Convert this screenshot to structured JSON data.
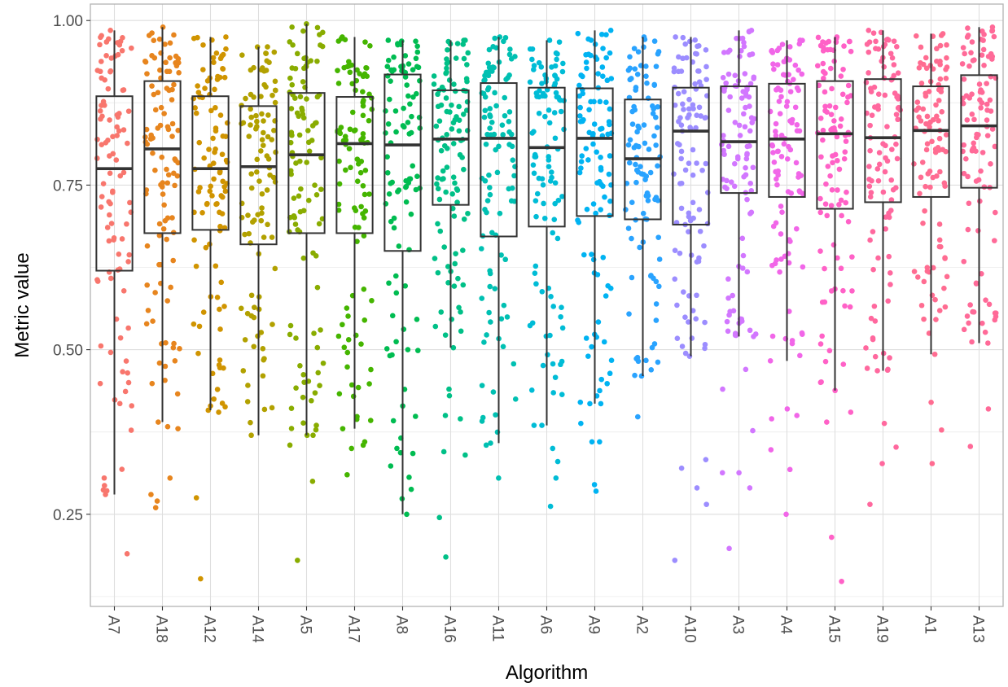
{
  "chart_data": {
    "type": "box",
    "xlabel": "Algorithm",
    "ylabel": "Metric value",
    "ylim": [
      0.11,
      1.025
    ],
    "yticks": [
      0.25,
      0.5,
      0.75,
      1.0
    ],
    "ytick_labels": [
      "0.25",
      "0.50",
      "0.75",
      "1.00"
    ],
    "grid": true,
    "legend": "none",
    "jitter_points_per_group": 100,
    "categories": [
      "A7",
      "A18",
      "A12",
      "A14",
      "A5",
      "A17",
      "A8",
      "A16",
      "A11",
      "A6",
      "A9",
      "A2",
      "A10",
      "A3",
      "A4",
      "A15",
      "A19",
      "A1",
      "A13"
    ],
    "colors": [
      "#F8766D",
      "#E7851E",
      "#D09400",
      "#B2A100",
      "#89AC00",
      "#45B500",
      "#00BC51",
      "#00C087",
      "#00C0B2",
      "#00BCD6",
      "#00B3F2",
      "#29A3FF",
      "#9C8DFF",
      "#D277FF",
      "#F166E8",
      "#FF61C7",
      "#FF689E",
      "#FF6C91",
      "#FF6A98"
    ],
    "boxes": [
      {
        "name": "A7",
        "whisker_low": 0.28,
        "q1": 0.62,
        "median": 0.775,
        "q3": 0.885,
        "whisker_high": 0.985
      },
      {
        "name": "A18",
        "whisker_low": 0.39,
        "q1": 0.677,
        "median": 0.805,
        "q3": 0.908,
        "whisker_high": 0.99
      },
      {
        "name": "A12",
        "whisker_low": 0.408,
        "q1": 0.682,
        "median": 0.775,
        "q3": 0.885,
        "whisker_high": 0.975
      },
      {
        "name": "A14",
        "whisker_low": 0.37,
        "q1": 0.66,
        "median": 0.778,
        "q3": 0.87,
        "whisker_high": 0.96
      },
      {
        "name": "A5",
        "whisker_low": 0.37,
        "q1": 0.677,
        "median": 0.796,
        "q3": 0.89,
        "whisker_high": 0.995
      },
      {
        "name": "A17",
        "whisker_low": 0.38,
        "q1": 0.677,
        "median": 0.813,
        "q3": 0.884,
        "whisker_high": 0.975
      },
      {
        "name": "A8",
        "whisker_low": 0.25,
        "q1": 0.65,
        "median": 0.811,
        "q3": 0.918,
        "whisker_high": 0.97
      },
      {
        "name": "A16",
        "whisker_low": 0.503,
        "q1": 0.72,
        "median": 0.82,
        "q3": 0.894,
        "whisker_high": 0.97
      },
      {
        "name": "A11",
        "whisker_low": 0.358,
        "q1": 0.672,
        "median": 0.821,
        "q3": 0.905,
        "whisker_high": 0.975
      },
      {
        "name": "A6",
        "whisker_low": 0.385,
        "q1": 0.687,
        "median": 0.807,
        "q3": 0.898,
        "whisker_high": 0.97
      },
      {
        "name": "A9",
        "whisker_low": 0.418,
        "q1": 0.703,
        "median": 0.821,
        "q3": 0.897,
        "whisker_high": 0.985
      },
      {
        "name": "A2",
        "whisker_low": 0.46,
        "q1": 0.698,
        "median": 0.79,
        "q3": 0.88,
        "whisker_high": 0.975
      },
      {
        "name": "A10",
        "whisker_low": 0.49,
        "q1": 0.69,
        "median": 0.832,
        "q3": 0.898,
        "whisker_high": 0.975
      },
      {
        "name": "A3",
        "whisker_low": 0.52,
        "q1": 0.738,
        "median": 0.816,
        "q3": 0.9,
        "whisker_high": 0.985
      },
      {
        "name": "A4",
        "whisker_low": 0.483,
        "q1": 0.732,
        "median": 0.82,
        "q3": 0.904,
        "whisker_high": 0.97
      },
      {
        "name": "A15",
        "whisker_low": 0.438,
        "q1": 0.714,
        "median": 0.828,
        "q3": 0.908,
        "whisker_high": 0.975
      },
      {
        "name": "A19",
        "whisker_low": 0.468,
        "q1": 0.724,
        "median": 0.822,
        "q3": 0.911,
        "whisker_high": 0.985
      },
      {
        "name": "A1",
        "whisker_low": 0.493,
        "q1": 0.732,
        "median": 0.833,
        "q3": 0.9,
        "whisker_high": 0.98
      },
      {
        "name": "A13",
        "whisker_low": 0.51,
        "q1": 0.746,
        "median": 0.84,
        "q3": 0.917,
        "whisker_high": 0.99
      }
    ],
    "outliers": [
      {
        "name": "A7",
        "values": [
          0.19
        ]
      },
      {
        "name": "A18",
        "values": [
          0.26,
          0.27,
          0.28,
          0.305,
          0.38,
          0.383
        ]
      },
      {
        "name": "A12",
        "values": [
          0.152,
          0.275,
          0.405,
          0.425
        ]
      },
      {
        "name": "A14",
        "values": []
      },
      {
        "name": "A5",
        "values": [
          0.18,
          0.3,
          0.355,
          0.37,
          0.385
        ]
      },
      {
        "name": "A17",
        "values": [
          0.31,
          0.35,
          0.355,
          0.36
        ]
      },
      {
        "name": "A8",
        "values": []
      },
      {
        "name": "A16",
        "values": [
          0.185,
          0.245,
          0.34,
          0.345,
          0.395,
          0.4,
          0.43,
          0.44
        ]
      },
      {
        "name": "A11",
        "values": [
          0.305,
          0.355
        ]
      },
      {
        "name": "A6",
        "values": [
          0.262,
          0.305,
          0.33,
          0.35,
          0.385
        ]
      },
      {
        "name": "A9",
        "values": [
          0.285,
          0.295,
          0.36,
          0.36,
          0.388,
          0.418
        ]
      },
      {
        "name": "A2",
        "values": [
          0.398
        ]
      },
      {
        "name": "A10",
        "values": [
          0.18,
          0.265,
          0.29,
          0.32,
          0.333
        ]
      },
      {
        "name": "A3",
        "values": [
          0.198,
          0.29,
          0.313,
          0.313,
          0.377,
          0.44,
          0.47
        ]
      },
      {
        "name": "A4",
        "values": [
          0.25,
          0.318,
          0.348,
          0.395,
          0.4,
          0.41
        ]
      },
      {
        "name": "A15",
        "values": [
          0.148,
          0.215,
          0.39,
          0.405
        ]
      },
      {
        "name": "A19",
        "values": [
          0.265,
          0.327,
          0.352,
          0.388
        ]
      },
      {
        "name": "A1",
        "values": [
          0.327,
          0.378,
          0.42
        ]
      },
      {
        "name": "A13",
        "values": [
          0.353,
          0.41
        ]
      }
    ]
  }
}
